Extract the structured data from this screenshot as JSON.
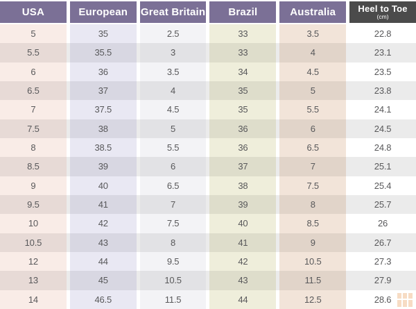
{
  "chart_data": {
    "type": "table",
    "columns": [
      {
        "label": "USA"
      },
      {
        "label": "European"
      },
      {
        "label": "Great Britain"
      },
      {
        "label": "Brazil"
      },
      {
        "label": "Australia"
      },
      {
        "label": "Heel to Toe",
        "sublabel": "(cm)"
      }
    ],
    "rows": [
      [
        "5",
        "35",
        "2.5",
        "33",
        "3.5",
        "22.8"
      ],
      [
        "5.5",
        "35.5",
        "3",
        "33",
        "4",
        "23.1"
      ],
      [
        "6",
        "36",
        "3.5",
        "34",
        "4.5",
        "23.5"
      ],
      [
        "6.5",
        "37",
        "4",
        "35",
        "5",
        "23.8"
      ],
      [
        "7",
        "37.5",
        "4.5",
        "35",
        "5.5",
        "24.1"
      ],
      [
        "7.5",
        "38",
        "5",
        "36",
        "6",
        "24.5"
      ],
      [
        "8",
        "38.5",
        "5.5",
        "36",
        "6.5",
        "24.8"
      ],
      [
        "8.5",
        "39",
        "6",
        "37",
        "7",
        "25.1"
      ],
      [
        "9",
        "40",
        "6.5",
        "38",
        "7.5",
        "25.4"
      ],
      [
        "9.5",
        "41",
        "7",
        "39",
        "8",
        "25.7"
      ],
      [
        "10",
        "42",
        "7.5",
        "40",
        "8.5",
        "26"
      ],
      [
        "10.5",
        "43",
        "8",
        "41",
        "9",
        "26.7"
      ],
      [
        "12",
        "44",
        "9.5",
        "42",
        "10.5",
        "27.3"
      ],
      [
        "13",
        "45",
        "10.5",
        "43",
        "11.5",
        "27.9"
      ],
      [
        "14",
        "46.5",
        "11.5",
        "44",
        "12.5",
        "28.6"
      ]
    ],
    "layout": {
      "header_style": "colored blocks",
      "row_striping": true,
      "legend_position": "none"
    }
  },
  "colors": {
    "header_purple": "#7b7096",
    "header_dark_gray": "#4b4b4b",
    "header_text": "#ffffff",
    "cell_text": "#58585a",
    "col_usa_tint": "#f9ece7",
    "col_european_tint": "#e9e8f3",
    "col_great_britain_tint": "#f3f3f6",
    "col_brazil_tint": "#efeedb",
    "col_australia_tint": "#f2e4d9",
    "col_heel_to_toe_tint": "#ffffff",
    "stripe_gray": "#ebebeb",
    "watermark_orange": "#eb9e5a"
  },
  "icons": {
    "watermark": "grid-logo-icon"
  }
}
